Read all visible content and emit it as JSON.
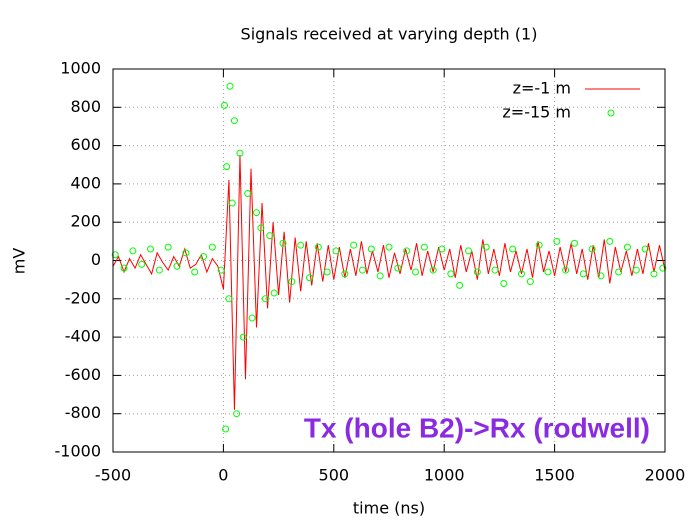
{
  "chart_data": {
    "type": "line",
    "title": "Signals received at varying depth (1)",
    "x_label": "time (ns)",
    "y_label": "mV",
    "annotation": "Tx (hole B2)->Rx (rodwell)",
    "annotation_color": "#8a2be2",
    "xlim": [
      -500,
      2000
    ],
    "xticks": [
      -500,
      0,
      500,
      1000,
      1500,
      2000
    ],
    "ylim": [
      -1000,
      1000
    ],
    "yticks": [
      -1000,
      -800,
      -600,
      -400,
      -200,
      0,
      200,
      400,
      600,
      800,
      1000
    ],
    "grid": true,
    "legend": "top-right",
    "series": [
      {
        "name": "z=-1 m",
        "color": "#ff0000",
        "type": "line",
        "x": [
          -500,
          -475,
          -450,
          -425,
          -400,
          -375,
          -350,
          -325,
          -300,
          -275,
          -250,
          -225,
          -200,
          -175,
          -150,
          -125,
          -100,
          -75,
          -50,
          -25,
          0,
          25,
          50,
          75,
          100,
          125,
          150,
          175,
          200,
          225,
          250,
          275,
          300,
          325,
          350,
          375,
          400,
          425,
          450,
          475,
          500,
          525,
          550,
          575,
          600,
          625,
          650,
          675,
          700,
          725,
          750,
          775,
          800,
          825,
          850,
          875,
          900,
          925,
          950,
          975,
          1000,
          1025,
          1050,
          1075,
          1100,
          1125,
          1150,
          1175,
          1200,
          1225,
          1250,
          1275,
          1300,
          1325,
          1350,
          1375,
          1400,
          1425,
          1450,
          1475,
          1500,
          1525,
          1550,
          1575,
          1600,
          1625,
          1650,
          1675,
          1700,
          1725,
          1750,
          1775,
          1800,
          1825,
          1850,
          1875,
          1900,
          1925,
          1950,
          1975,
          2000
        ],
        "values": [
          -30,
          20,
          -60,
          10,
          -40,
          30,
          -20,
          -70,
          40,
          -10,
          -50,
          20,
          -30,
          60,
          -40,
          -20,
          30,
          -60,
          10,
          -30,
          -150,
          420,
          -780,
          550,
          -620,
          480,
          -350,
          300,
          -250,
          200,
          -180,
          150,
          -220,
          120,
          -160,
          100,
          -130,
          90,
          -110,
          80,
          -100,
          70,
          -90,
          60,
          -80,
          100,
          -70,
          50,
          -60,
          80,
          -90,
          40,
          -70,
          60,
          -50,
          90,
          -80,
          50,
          -60,
          70,
          -50,
          60,
          -90,
          80,
          -60,
          50,
          -100,
          110,
          -70,
          60,
          -80,
          90,
          -60,
          50,
          -70,
          60,
          -90,
          100,
          -60,
          50,
          -80,
          70,
          -60,
          90,
          -70,
          60,
          -100,
          80,
          -90,
          110,
          -120,
          70,
          -60,
          50,
          -80,
          60,
          -70,
          90,
          -60,
          80,
          -50
        ]
      },
      {
        "name": "z=-15 m",
        "color": "#00ff00",
        "type": "scatter",
        "x": [
          -490,
          -450,
          -410,
          -370,
          -330,
          -290,
          -250,
          -210,
          -170,
          -130,
          -90,
          -50,
          -10,
          5,
          10,
          15,
          25,
          30,
          40,
          50,
          60,
          75,
          90,
          110,
          130,
          150,
          170,
          190,
          210,
          230,
          270,
          310,
          350,
          390,
          430,
          470,
          510,
          550,
          590,
          630,
          670,
          710,
          750,
          790,
          830,
          870,
          910,
          950,
          990,
          1030,
          1070,
          1110,
          1150,
          1190,
          1230,
          1270,
          1310,
          1350,
          1390,
          1430,
          1470,
          1510,
          1550,
          1590,
          1630,
          1670,
          1710,
          1750,
          1790,
          1830,
          1870,
          1910,
          1950,
          1990
        ],
        "values": [
          30,
          -40,
          50,
          -20,
          60,
          -50,
          70,
          -30,
          40,
          -60,
          20,
          70,
          -50,
          810,
          -880,
          490,
          -200,
          910,
          300,
          730,
          -800,
          560,
          -400,
          350,
          -300,
          250,
          170,
          -200,
          130,
          -170,
          90,
          -110,
          80,
          -90,
          70,
          -60,
          50,
          -70,
          80,
          -50,
          60,
          -80,
          70,
          -40,
          50,
          -60,
          70,
          -50,
          60,
          -70,
          -130,
          50,
          -60,
          70,
          -50,
          -120,
          60,
          -70,
          -110,
          80,
          -60,
          100,
          -50,
          90,
          -70,
          60,
          -80,
          100,
          -60,
          70,
          -50,
          60,
          -70,
          -40
        ]
      }
    ]
  }
}
